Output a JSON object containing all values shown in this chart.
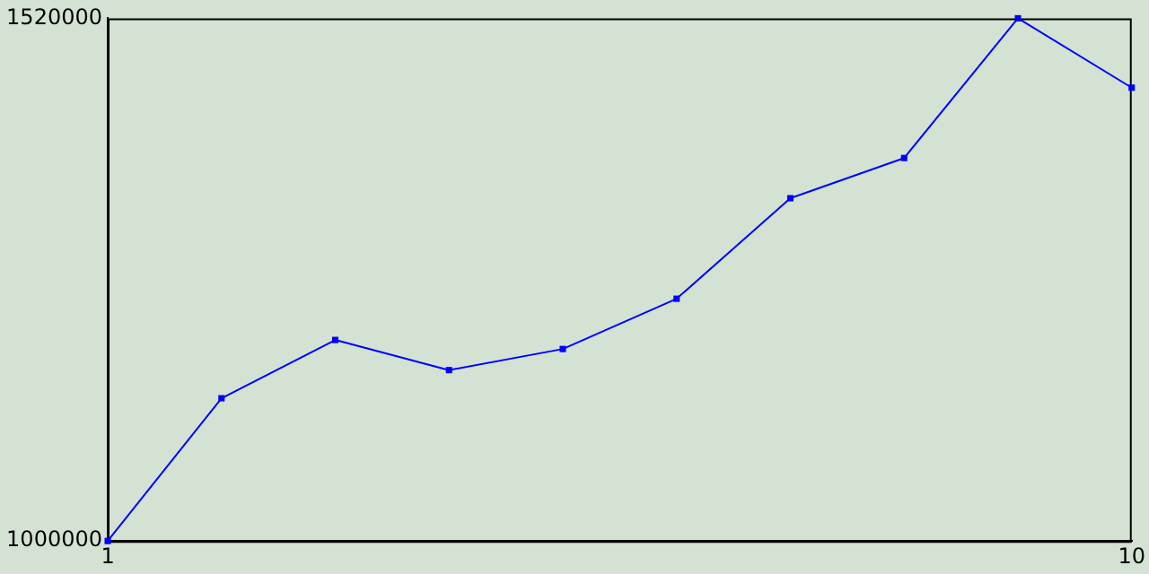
{
  "chart_data": {
    "type": "line",
    "x": [
      1,
      2,
      3,
      4,
      5,
      6,
      7,
      8,
      9,
      10
    ],
    "series": [
      {
        "color": "#0000ff",
        "values": [
          1000000,
          1142000,
          1200000,
          1170000,
          1191000,
          1241000,
          1341000,
          1381000,
          1520000,
          1451000
        ]
      }
    ],
    "xlim": [
      1,
      10
    ],
    "xticks": [
      1,
      10
    ],
    "ylim": [
      1000000,
      1520000
    ],
    "yticks": [
      1000000,
      1520000
    ],
    "marker": "square",
    "grid": false,
    "legend": false
  }
}
